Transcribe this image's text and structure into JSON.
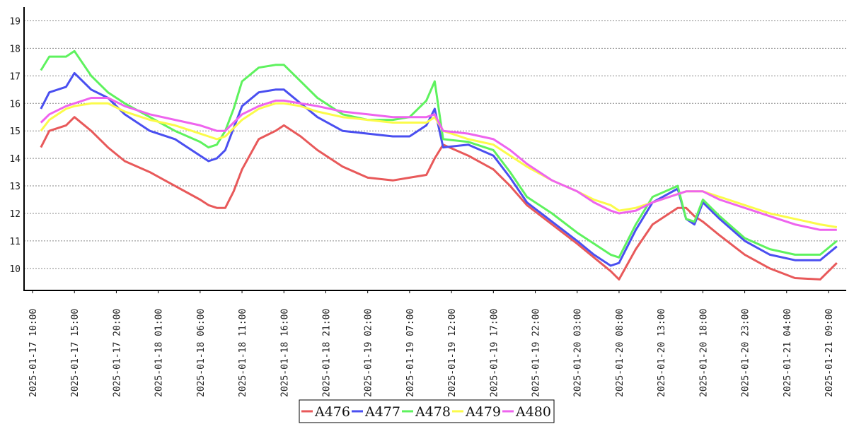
{
  "chart_data": {
    "type": "line",
    "title": "",
    "xlabel": "",
    "ylabel": "",
    "ylim": [
      9.2,
      19.5
    ],
    "yticks": [
      10,
      11,
      12,
      13,
      14,
      15,
      16,
      17,
      18,
      19
    ],
    "grid": "horizontal dotted",
    "legend_position": "bottom-center",
    "x_tick_labels": [
      "2025-01-17 10:00",
      "2025-01-17 15:00",
      "2025-01-17 20:00",
      "2025-01-18 01:00",
      "2025-01-18 06:00",
      "2025-01-18 11:00",
      "2025-01-18 16:00",
      "2025-01-18 21:00",
      "2025-01-19 02:00",
      "2025-01-19 07:00",
      "2025-01-19 12:00",
      "2025-01-19 17:00",
      "2025-01-19 22:00",
      "2025-01-20 03:00",
      "2025-01-20 08:00",
      "2025-01-20 13:00",
      "2025-01-20 18:00",
      "2025-01-20 23:00",
      "2025-01-21 04:00",
      "2025-01-21 09:00"
    ],
    "x": [
      "2025-01-17 11:00",
      "2025-01-17 12:00",
      "2025-01-17 14:00",
      "2025-01-17 15:00",
      "2025-01-17 17:00",
      "2025-01-17 19:00",
      "2025-01-17 21:00",
      "2025-01-18 00:00",
      "2025-01-18 03:00",
      "2025-01-18 06:00",
      "2025-01-18 07:00",
      "2025-01-18 08:00",
      "2025-01-18 09:00",
      "2025-01-18 10:00",
      "2025-01-18 11:00",
      "2025-01-18 13:00",
      "2025-01-18 15:00",
      "2025-01-18 16:00",
      "2025-01-18 18:00",
      "2025-01-18 20:00",
      "2025-01-18 23:00",
      "2025-01-19 02:00",
      "2025-01-19 05:00",
      "2025-01-19 07:00",
      "2025-01-19 09:00",
      "2025-01-19 10:00",
      "2025-01-19 11:00",
      "2025-01-19 14:00",
      "2025-01-19 17:00",
      "2025-01-19 19:00",
      "2025-01-19 21:00",
      "2025-01-20 00:00",
      "2025-01-20 03:00",
      "2025-01-20 05:00",
      "2025-01-20 07:00",
      "2025-01-20 08:00",
      "2025-01-20 10:00",
      "2025-01-20 12:00",
      "2025-01-20 15:00",
      "2025-01-20 16:00",
      "2025-01-20 17:00",
      "2025-01-20 18:00",
      "2025-01-20 20:00",
      "2025-01-20 23:00",
      "2025-01-21 02:00",
      "2025-01-21 05:00",
      "2025-01-21 08:00",
      "2025-01-21 10:00"
    ],
    "series": [
      {
        "name": "A476",
        "color": "#e8595a",
        "values": [
          14.4,
          15.0,
          15.2,
          15.5,
          15.0,
          14.4,
          13.9,
          13.5,
          13.0,
          12.5,
          12.3,
          12.2,
          12.2,
          12.8,
          13.6,
          14.7,
          15.0,
          15.2,
          14.8,
          14.3,
          13.7,
          13.3,
          13.2,
          13.3,
          13.4,
          14.0,
          14.5,
          14.1,
          13.6,
          13.0,
          12.3,
          11.6,
          10.9,
          10.4,
          9.9,
          9.6,
          10.7,
          11.6,
          12.2,
          12.2,
          11.9,
          11.7,
          11.2,
          10.5,
          10.0,
          9.65,
          9.6,
          10.2
        ]
      },
      {
        "name": "A477",
        "color": "#4a4ff0",
        "values": [
          15.8,
          16.4,
          16.6,
          17.1,
          16.5,
          16.2,
          15.6,
          15.0,
          14.7,
          14.1,
          13.9,
          14.0,
          14.3,
          15.1,
          15.9,
          16.4,
          16.5,
          16.5,
          16.0,
          15.5,
          15.0,
          14.9,
          14.8,
          14.8,
          15.2,
          15.8,
          14.4,
          14.5,
          14.1,
          13.3,
          12.4,
          11.7,
          11.0,
          10.5,
          10.1,
          10.2,
          11.4,
          12.4,
          12.9,
          11.8,
          11.6,
          12.4,
          11.8,
          11.0,
          10.5,
          10.3,
          10.3,
          10.8
        ]
      },
      {
        "name": "A478",
        "color": "#5ef25e",
        "values": [
          17.2,
          17.7,
          17.7,
          17.9,
          17.0,
          16.4,
          16.0,
          15.5,
          15.0,
          14.6,
          14.4,
          14.5,
          15.0,
          15.8,
          16.8,
          17.3,
          17.4,
          17.4,
          16.8,
          16.2,
          15.6,
          15.4,
          15.4,
          15.5,
          16.1,
          16.8,
          14.7,
          14.6,
          14.3,
          13.5,
          12.6,
          12.0,
          11.3,
          10.9,
          10.5,
          10.4,
          11.6,
          12.6,
          13.0,
          11.8,
          11.7,
          12.5,
          11.9,
          11.1,
          10.7,
          10.5,
          10.5,
          11.0
        ]
      },
      {
        "name": "A479",
        "color": "#fbfb4a",
        "values": [
          15.0,
          15.4,
          15.8,
          15.9,
          16.0,
          16.0,
          15.7,
          15.4,
          15.2,
          14.9,
          14.8,
          14.7,
          14.8,
          15.1,
          15.4,
          15.8,
          16.0,
          16.0,
          15.9,
          15.7,
          15.5,
          15.4,
          15.3,
          15.3,
          15.3,
          15.5,
          15.0,
          14.7,
          14.5,
          14.1,
          13.7,
          13.2,
          12.8,
          12.5,
          12.3,
          12.1,
          12.2,
          12.4,
          12.7,
          12.8,
          12.8,
          12.8,
          12.6,
          12.3,
          12.0,
          11.8,
          11.6,
          11.5
        ]
      },
      {
        "name": "A480",
        "color": "#ee64ee",
        "values": [
          15.3,
          15.6,
          15.9,
          16.0,
          16.2,
          16.2,
          15.9,
          15.6,
          15.4,
          15.2,
          15.1,
          15.0,
          15.0,
          15.3,
          15.6,
          15.9,
          16.1,
          16.1,
          16.0,
          15.9,
          15.7,
          15.6,
          15.5,
          15.5,
          15.5,
          15.6,
          15.0,
          14.9,
          14.7,
          14.3,
          13.8,
          13.2,
          12.8,
          12.4,
          12.1,
          12.0,
          12.1,
          12.4,
          12.7,
          12.8,
          12.8,
          12.8,
          12.5,
          12.2,
          11.9,
          11.6,
          11.4,
          11.4
        ]
      }
    ]
  }
}
